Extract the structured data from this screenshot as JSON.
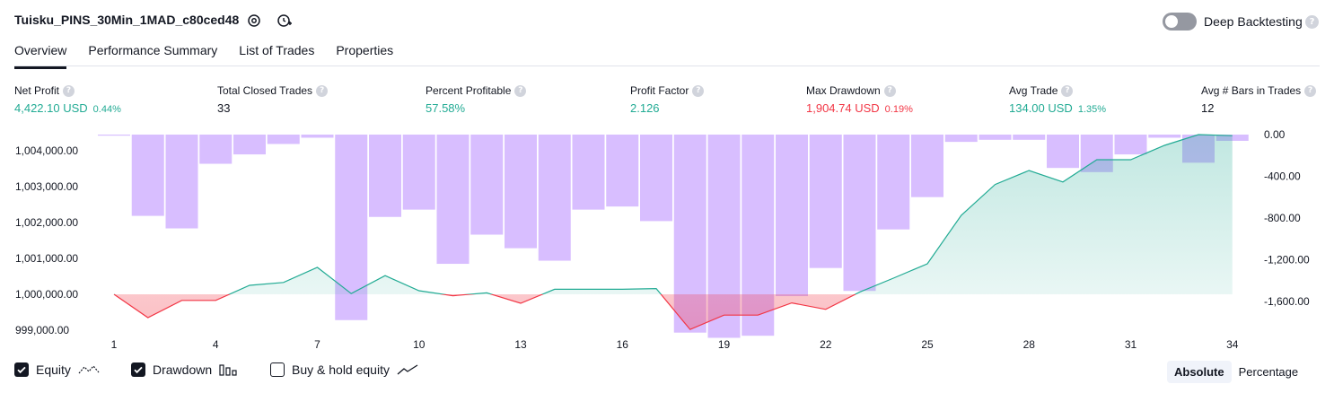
{
  "header": {
    "title": "Tuisku_PINS_30Min_1MAD_c80ced48",
    "deep_backtesting_label": "Deep Backtesting",
    "deep_backtesting_enabled": false,
    "help_glyph": "?"
  },
  "tabs": [
    {
      "label": "Overview",
      "active": true
    },
    {
      "label": "Performance Summary",
      "active": false
    },
    {
      "label": "List of Trades",
      "active": false
    },
    {
      "label": "Properties",
      "active": false
    }
  ],
  "metrics": [
    {
      "label": "Net Profit",
      "value": "4,422.10 USD",
      "pct": "0.44%",
      "tone": "green"
    },
    {
      "label": "Total Closed Trades",
      "value": "33",
      "pct": "",
      "tone": "dark"
    },
    {
      "label": "Percent Profitable",
      "value": "57.58%",
      "pct": "",
      "tone": "green"
    },
    {
      "label": "Profit Factor",
      "value": "2.126",
      "pct": "",
      "tone": "green"
    },
    {
      "label": "Max Drawdown",
      "value": "1,904.74 USD",
      "pct": "0.19%",
      "tone": "red"
    },
    {
      "label": "Avg Trade",
      "value": "134.00 USD",
      "pct": "1.35%",
      "tone": "green"
    },
    {
      "label": "Avg # Bars in Trades",
      "value": "12",
      "pct": "",
      "tone": "dark"
    }
  ],
  "chart_data": {
    "type": "area",
    "x_ticks": [
      "1",
      "4",
      "7",
      "10",
      "13",
      "16",
      "19",
      "22",
      "25",
      "28",
      "31",
      "34"
    ],
    "left_axis": {
      "ticks": [
        "1,004,000.00",
        "1,003,000.00",
        "1,002,000.00",
        "1,001,000.00",
        "1,000,000.00",
        "999,000.00"
      ],
      "range": [
        998700,
        1004450
      ]
    },
    "right_axis": {
      "ticks": [
        "0.00",
        "-400.00",
        "-800.00",
        "-1,200.00",
        "-1,600.00"
      ],
      "range": [
        -1980,
        0
      ]
    },
    "baseline": 1000000,
    "equity": {
      "x": [
        1,
        2,
        3,
        4,
        5,
        6,
        7,
        8,
        9,
        10,
        11,
        12,
        13,
        14,
        15,
        16,
        17,
        18,
        19,
        20,
        21,
        22,
        23,
        24,
        25,
        26,
        27,
        28,
        29,
        30,
        31,
        32,
        33,
        34
      ],
      "values": [
        1000000,
        999350,
        999830,
        999830,
        1000250,
        1000330,
        1000750,
        1000020,
        1000520,
        1000100,
        999960,
        1000040,
        999750,
        1000140,
        1000140,
        1000140,
        1000160,
        999020,
        999420,
        999420,
        999760,
        999580,
        1000060,
        1000450,
        1000850,
        1002200,
        1003060,
        1003450,
        1003130,
        1003750,
        1003750,
        1004150,
        1004450,
        1004420
      ],
      "colors": {
        "profit": "#22ab94",
        "loss": "#f23645"
      }
    },
    "drawdown": {
      "x": [
        1,
        2,
        3,
        4,
        5,
        6,
        7,
        8,
        9,
        10,
        11,
        12,
        13,
        14,
        15,
        16,
        17,
        18,
        19,
        20,
        21,
        22,
        23,
        24,
        25,
        26,
        27,
        28,
        29,
        30,
        31,
        32,
        33,
        34
      ],
      "values": [
        -10,
        -780,
        -900,
        -280,
        -190,
        -90,
        -30,
        -1780,
        -790,
        -720,
        -1240,
        -960,
        -1090,
        -1210,
        -720,
        -690,
        -830,
        -1900,
        -1950,
        -1930,
        -1550,
        -1280,
        -1500,
        -910,
        -600,
        -70,
        -50,
        -50,
        -320,
        -360,
        -190,
        -30,
        -270,
        -60
      ],
      "color": "#d1b3ff"
    }
  },
  "legend": [
    {
      "label": "Equity",
      "checked": true,
      "icon": "equity-line-icon"
    },
    {
      "label": "Drawdown",
      "checked": true,
      "icon": "drawdown-bars-icon"
    },
    {
      "label": "Buy & hold equity",
      "checked": false,
      "icon": "buy-hold-line-icon"
    }
  ],
  "scale_toggle": {
    "absolute_label": "Absolute",
    "percentage_label": "Percentage",
    "selected": "Absolute"
  }
}
